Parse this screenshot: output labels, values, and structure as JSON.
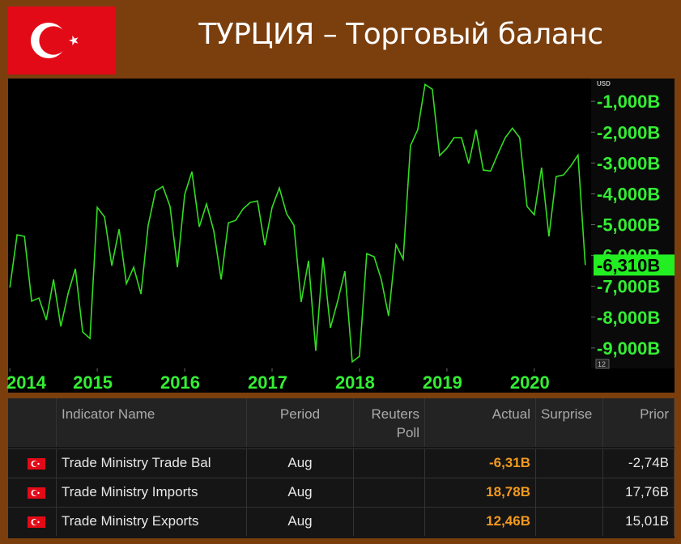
{
  "header": {
    "title": "ТУРЦИЯ – Торговый баланс"
  },
  "chart_data": {
    "type": "line",
    "color": "#33dd22",
    "y_unit": "USD",
    "corner_badge": "12",
    "x": [
      2014,
      2014.083,
      2014.167,
      2014.25,
      2014.333,
      2014.417,
      2014.5,
      2014.583,
      2014.667,
      2014.75,
      2014.833,
      2014.917,
      2015,
      2015.083,
      2015.167,
      2015.25,
      2015.333,
      2015.417,
      2015.5,
      2015.583,
      2015.667,
      2015.75,
      2015.833,
      2015.917,
      2016,
      2016.083,
      2016.167,
      2016.25,
      2016.333,
      2016.417,
      2016.5,
      2016.583,
      2016.667,
      2016.75,
      2016.833,
      2016.917,
      2017,
      2017.083,
      2017.167,
      2017.25,
      2017.333,
      2017.417,
      2017.5,
      2017.583,
      2017.667,
      2017.75,
      2017.833,
      2017.917,
      2018,
      2018.083,
      2018.167,
      2018.25,
      2018.333,
      2018.417,
      2018.5,
      2018.583,
      2018.667,
      2018.75,
      2018.833,
      2018.917,
      2019,
      2019.083,
      2019.167,
      2019.25,
      2019.333,
      2019.417,
      2019.5,
      2019.583,
      2019.667,
      2019.75,
      2019.833,
      2019.917,
      2020,
      2020.083,
      2020.167,
      2020.25,
      2020.333,
      2020.417,
      2020.5,
      2020.583
    ],
    "values": [
      -7040,
      -5330,
      -5380,
      -7480,
      -7380,
      -8090,
      -6780,
      -8300,
      -7220,
      -6430,
      -8480,
      -8690,
      -4440,
      -4750,
      -6330,
      -5150,
      -6910,
      -6380,
      -7250,
      -5020,
      -3910,
      -3760,
      -4410,
      -6380,
      -4020,
      -3280,
      -5070,
      -4330,
      -5200,
      -6780,
      -4940,
      -4860,
      -4490,
      -4280,
      -4230,
      -5670,
      -4440,
      -3810,
      -4650,
      -5020,
      -7510,
      -6170,
      -9090,
      -6070,
      -8350,
      -7480,
      -6510,
      -9450,
      -9270,
      -5940,
      -6040,
      -6780,
      -7960,
      -5650,
      -6120,
      -2440,
      -1920,
      -450,
      -610,
      -2760,
      -2520,
      -2180,
      -2180,
      -3020,
      -1920,
      -3230,
      -3260,
      -2710,
      -2180,
      -1870,
      -2180,
      -4410,
      -4680,
      -3150,
      -5380,
      -3440,
      -3390,
      -3100,
      -2740,
      -6310
    ],
    "value_labels": [
      null,
      null,
      null,
      null,
      null,
      null,
      null,
      null,
      null,
      null,
      null,
      null,
      null,
      null,
      null,
      null,
      null,
      null,
      null,
      null,
      null,
      null,
      null,
      null,
      null,
      null,
      null,
      null,
      null,
      null,
      null,
      null,
      null,
      null,
      null,
      null,
      null,
      null,
      null,
      null,
      null,
      null,
      null,
      null,
      null,
      null,
      null,
      null,
      null,
      null,
      null,
      null,
      null,
      null,
      null,
      null,
      null,
      null,
      null,
      null,
      null,
      null,
      null,
      null,
      null,
      null,
      null,
      null,
      null,
      null,
      null,
      null,
      null,
      null,
      null,
      null,
      null,
      null,
      null,
      "-6,310B"
    ],
    "xlim": [
      2013.98,
      2020.65
    ],
    "xticks": [
      2014,
      2015,
      2016,
      2017,
      2018,
      2019,
      2020
    ],
    "ylim": [
      -9660,
      -260
    ],
    "yticks": [
      {
        "value": -1000,
        "label": "-1,000B"
      },
      {
        "value": -2000,
        "label": "-2,000B"
      },
      {
        "value": -3000,
        "label": "-3,000B"
      },
      {
        "value": -4000,
        "label": "-4,000B"
      },
      {
        "value": -5000,
        "label": "-5,000B"
      },
      {
        "value": -6000,
        "label": "-6,000B"
      },
      {
        "value": -7000,
        "label": "-7,000B"
      },
      {
        "value": -8000,
        "label": "-8,000B"
      },
      {
        "value": -9000,
        "label": "-9,000B"
      }
    ],
    "grid": false
  },
  "table": {
    "columns": [
      "Indicator Name",
      "Period",
      "Reuters Poll",
      "Actual",
      "Surprise",
      "Prior"
    ],
    "rows": [
      {
        "name": "Trade Ministry Trade Bal",
        "period": "Aug",
        "actual": "-6,31B",
        "prior": "-2,74B"
      },
      {
        "name": "Trade Ministry Imports",
        "period": "Aug",
        "actual": "18,78B",
        "prior": "17,76B"
      },
      {
        "name": "Trade Ministry Exports",
        "period": "Aug",
        "actual": "12,46B",
        "prior": "15,01B"
      }
    ]
  }
}
